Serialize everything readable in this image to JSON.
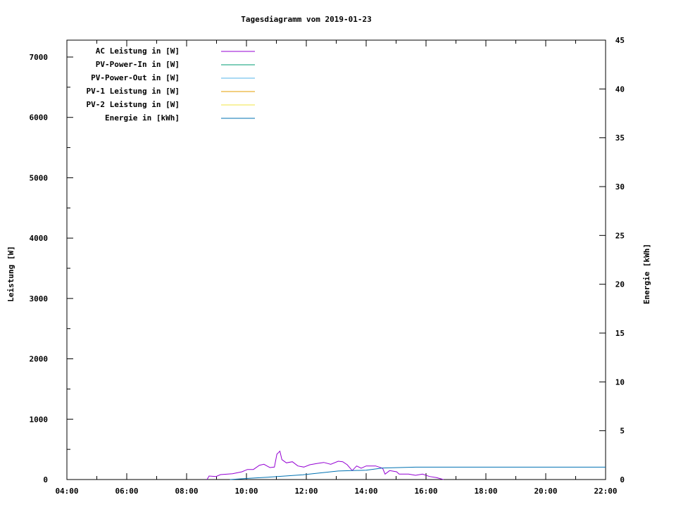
{
  "chart_data": {
    "type": "line",
    "title": "Tagesdiagramm vom 2019-01-23",
    "xlabel": "",
    "ylabel": "Leistung [W]",
    "y2label": "Energie [kWh]",
    "xlim": [
      "04:00",
      "22:00"
    ],
    "ylim": [
      0,
      7280
    ],
    "y2lim": [
      0,
      45
    ],
    "x_tick_labels": [
      "04:00",
      "06:00",
      "08:00",
      "10:00",
      "12:00",
      "14:00",
      "16:00",
      "18:00",
      "20:00",
      "22:00"
    ],
    "y_tick_labels": [
      "0",
      "1000",
      "2000",
      "3000",
      "4000",
      "5000",
      "6000",
      "7000"
    ],
    "y2_tick_labels": [
      "0",
      "5",
      "10",
      "15",
      "20",
      "25",
      "30",
      "35",
      "40",
      "45"
    ],
    "grid": false,
    "legend_position": "top-left",
    "series": [
      {
        "name": "AC Leistung in [W]",
        "axis": "y",
        "color": "#9400d3",
        "points": [
          [
            "08:41",
            0
          ],
          [
            "08:45",
            58
          ],
          [
            "08:59",
            50
          ],
          [
            "09:08",
            82
          ],
          [
            "09:32",
            97
          ],
          [
            "09:51",
            128
          ],
          [
            "10:02",
            167
          ],
          [
            "10:14",
            167
          ],
          [
            "10:26",
            237
          ],
          [
            "10:35",
            253
          ],
          [
            "10:47",
            198
          ],
          [
            "10:56",
            206
          ],
          [
            "11:01",
            420
          ],
          [
            "11:07",
            470
          ],
          [
            "11:11",
            330
          ],
          [
            "11:20",
            276
          ],
          [
            "11:32",
            295
          ],
          [
            "11:43",
            225
          ],
          [
            "11:55",
            206
          ],
          [
            "12:07",
            245
          ],
          [
            "12:21",
            265
          ],
          [
            "12:35",
            284
          ],
          [
            "12:49",
            253
          ],
          [
            "13:04",
            303
          ],
          [
            "13:13",
            295
          ],
          [
            "13:22",
            245
          ],
          [
            "13:32",
            148
          ],
          [
            "13:41",
            225
          ],
          [
            "13:50",
            187
          ],
          [
            "14:00",
            225
          ],
          [
            "14:19",
            225
          ],
          [
            "14:33",
            187
          ],
          [
            "14:38",
            90
          ],
          [
            "14:47",
            148
          ],
          [
            "15:01",
            128
          ],
          [
            "15:06",
            90
          ],
          [
            "15:25",
            90
          ],
          [
            "15:39",
            70
          ],
          [
            "15:53",
            90
          ],
          [
            "16:07",
            50
          ],
          [
            "16:21",
            32
          ],
          [
            "16:35",
            0
          ]
        ]
      },
      {
        "name": "PV-Power-In in [W]",
        "axis": "y",
        "color": "#009e73",
        "points": []
      },
      {
        "name": "PV-Power-Out in [W]",
        "axis": "y",
        "color": "#56b4e9",
        "points": []
      },
      {
        "name": "PV-1 Leistung in [W]",
        "axis": "y",
        "color": "#e69f00",
        "points": []
      },
      {
        "name": "PV-2 Leistung in [W]",
        "axis": "y",
        "color": "#f0e442",
        "points": []
      },
      {
        "name": "Energie in [kWh]",
        "axis": "y2",
        "color": "#0072b2",
        "points": [
          [
            "09:27",
            0
          ],
          [
            "10:05",
            0.12
          ],
          [
            "10:52",
            0.27
          ],
          [
            "11:53",
            0.48
          ],
          [
            "13:04",
            0.87
          ],
          [
            "14:00",
            0.96
          ],
          [
            "14:33",
            1.18
          ],
          [
            "15:39",
            1.27
          ],
          [
            "22:00",
            1.27
          ]
        ]
      }
    ]
  }
}
